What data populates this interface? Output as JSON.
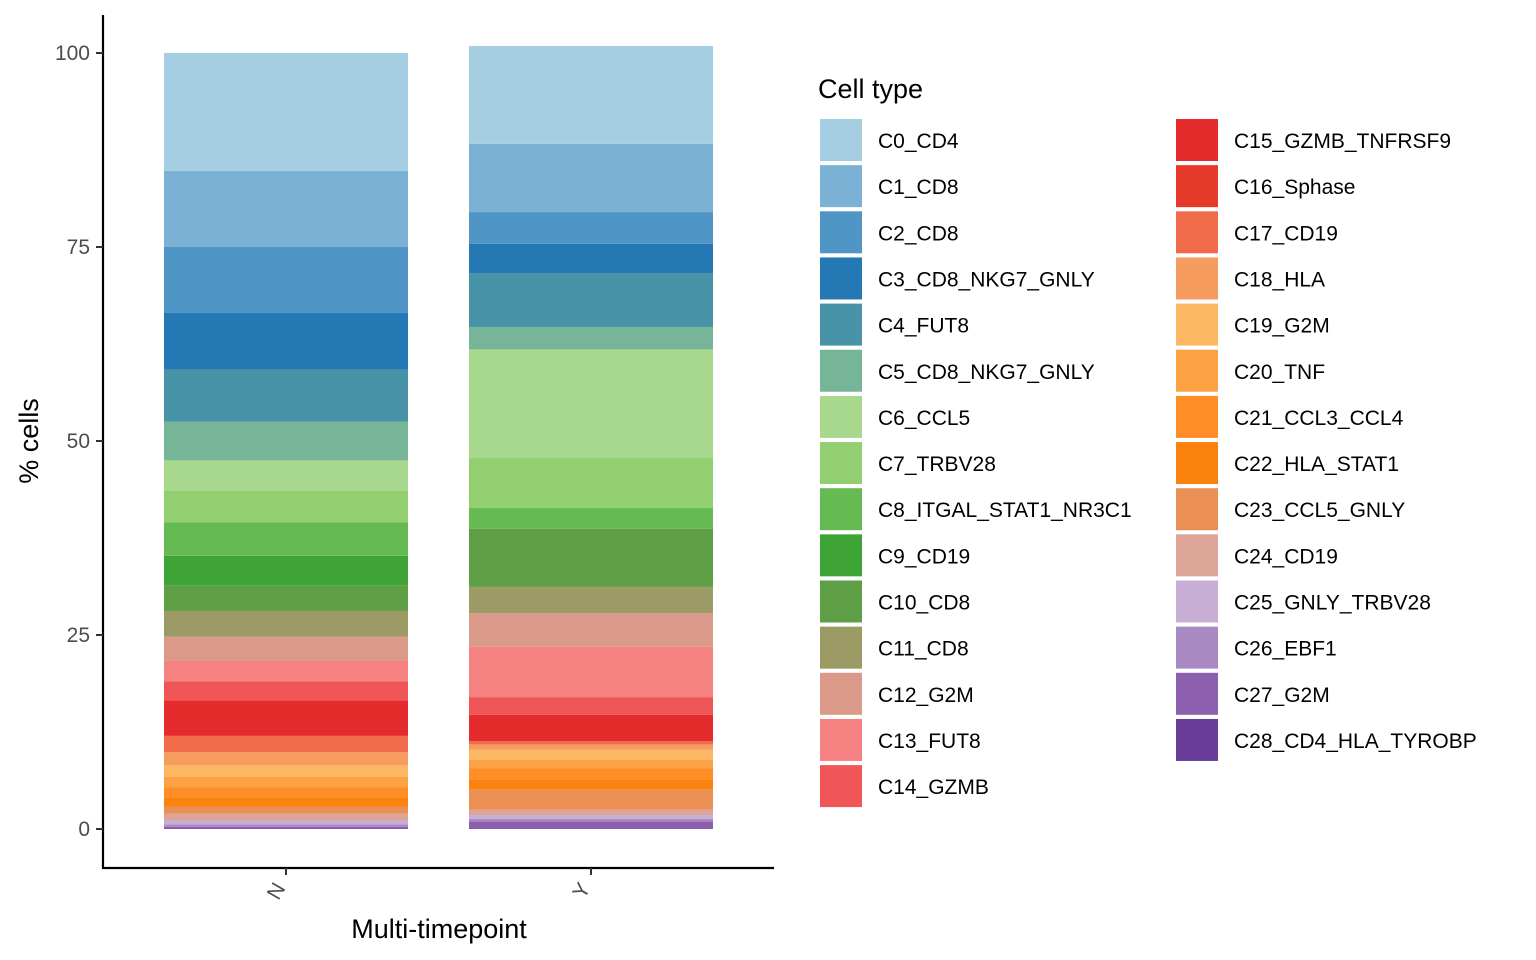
{
  "chart_data": {
    "type": "bar",
    "stacked": true,
    "xlabel": "Multi-timepoint",
    "ylabel": "% cells",
    "ylim": [
      0,
      100
    ],
    "yticks": [
      0,
      25,
      50,
      75,
      100
    ],
    "categories": [
      "N",
      "Y"
    ],
    "legend_title": "Cell type",
    "legend_position": "right",
    "grid": false,
    "series": [
      {
        "name": "C0_CD4",
        "color": "#A6CEE3",
        "values": [
          15.2,
          12.6
        ]
      },
      {
        "name": "C1_CD8",
        "color": "#7BB1D4",
        "values": [
          9.8,
          8.8
        ]
      },
      {
        "name": "C2_CD8",
        "color": "#4F95C5",
        "values": [
          8.5,
          4.1
        ]
      },
      {
        "name": "C3_CD8_NKG7_GNLY",
        "color": "#2479B5",
        "values": [
          7.3,
          3.8
        ]
      },
      {
        "name": "C4_FUT8",
        "color": "#4893A8",
        "values": [
          6.7,
          6.9
        ]
      },
      {
        "name": "C5_CD8_NKG7_GNLY",
        "color": "#77B598",
        "values": [
          5.0,
          2.9
        ]
      },
      {
        "name": "C6_CCL5",
        "color": "#A7D88E",
        "values": [
          3.9,
          14.0
        ]
      },
      {
        "name": "C7_TRBV28",
        "color": "#91CF70",
        "values": [
          4.1,
          6.4
        ]
      },
      {
        "name": "C8_ITGAL_STAT1_NR3C1",
        "color": "#65BA52",
        "values": [
          4.3,
          2.7
        ]
      },
      {
        "name": "C9_CD19",
        "color": "#3EA435",
        "values": [
          3.8,
          0.0
        ]
      },
      {
        "name": "C10_CD8",
        "color": "#5E9E45",
        "values": [
          3.3,
          7.5
        ]
      },
      {
        "name": "C11_CD8",
        "color": "#9D9B65",
        "values": [
          3.3,
          3.4
        ]
      },
      {
        "name": "C12_G2M",
        "color": "#DB9A89",
        "values": [
          3.1,
          4.3
        ]
      },
      {
        "name": "C13_FUT8",
        "color": "#F68181",
        "values": [
          2.7,
          6.5
        ]
      },
      {
        "name": "C14_GZMB",
        "color": "#F05658",
        "values": [
          2.4,
          2.3
        ]
      },
      {
        "name": "C15_GZMB_TNFRSF9",
        "color": "#E42C2D",
        "values": [
          4.6,
          3.4
        ]
      },
      {
        "name": "C16_Sphase",
        "color": "#E53A2A",
        "values": [
          0.0,
          0.0
        ]
      },
      {
        "name": "C17_CD19",
        "color": "#F06B49",
        "values": [
          2.1,
          0.4
        ]
      },
      {
        "name": "C18_HLA",
        "color": "#F79C5F",
        "values": [
          1.7,
          0.7
        ]
      },
      {
        "name": "C19_G2M",
        "color": "#FDB762",
        "values": [
          1.5,
          1.3
        ]
      },
      {
        "name": "C20_TNF",
        "color": "#FDA244",
        "values": [
          1.3,
          1.1
        ]
      },
      {
        "name": "C21_CCL3_CCL4",
        "color": "#FE8E25",
        "values": [
          1.3,
          1.4
        ]
      },
      {
        "name": "C22_HLA_STAT1",
        "color": "#FB820E",
        "values": [
          1.2,
          1.3
        ]
      },
      {
        "name": "C23_CCL5_GNLY",
        "color": "#EB9055",
        "values": [
          0.9,
          2.6
        ]
      },
      {
        "name": "C24_CD19",
        "color": "#DCA598",
        "values": [
          0.9,
          0.7
        ]
      },
      {
        "name": "C25_GNLY_TRBV28",
        "color": "#C8ADD5",
        "values": [
          0.5,
          0.5
        ]
      },
      {
        "name": "C26_EBF1",
        "color": "#A989C2",
        "values": [
          0.3,
          0.3
        ]
      },
      {
        "name": "C27_G2M",
        "color": "#8C60AE",
        "values": [
          0.2,
          0.9
        ]
      },
      {
        "name": "C28_CD4_HLA_TYROBP",
        "color": "#6A3D9A",
        "values": [
          0.1,
          0.1
        ]
      }
    ]
  }
}
